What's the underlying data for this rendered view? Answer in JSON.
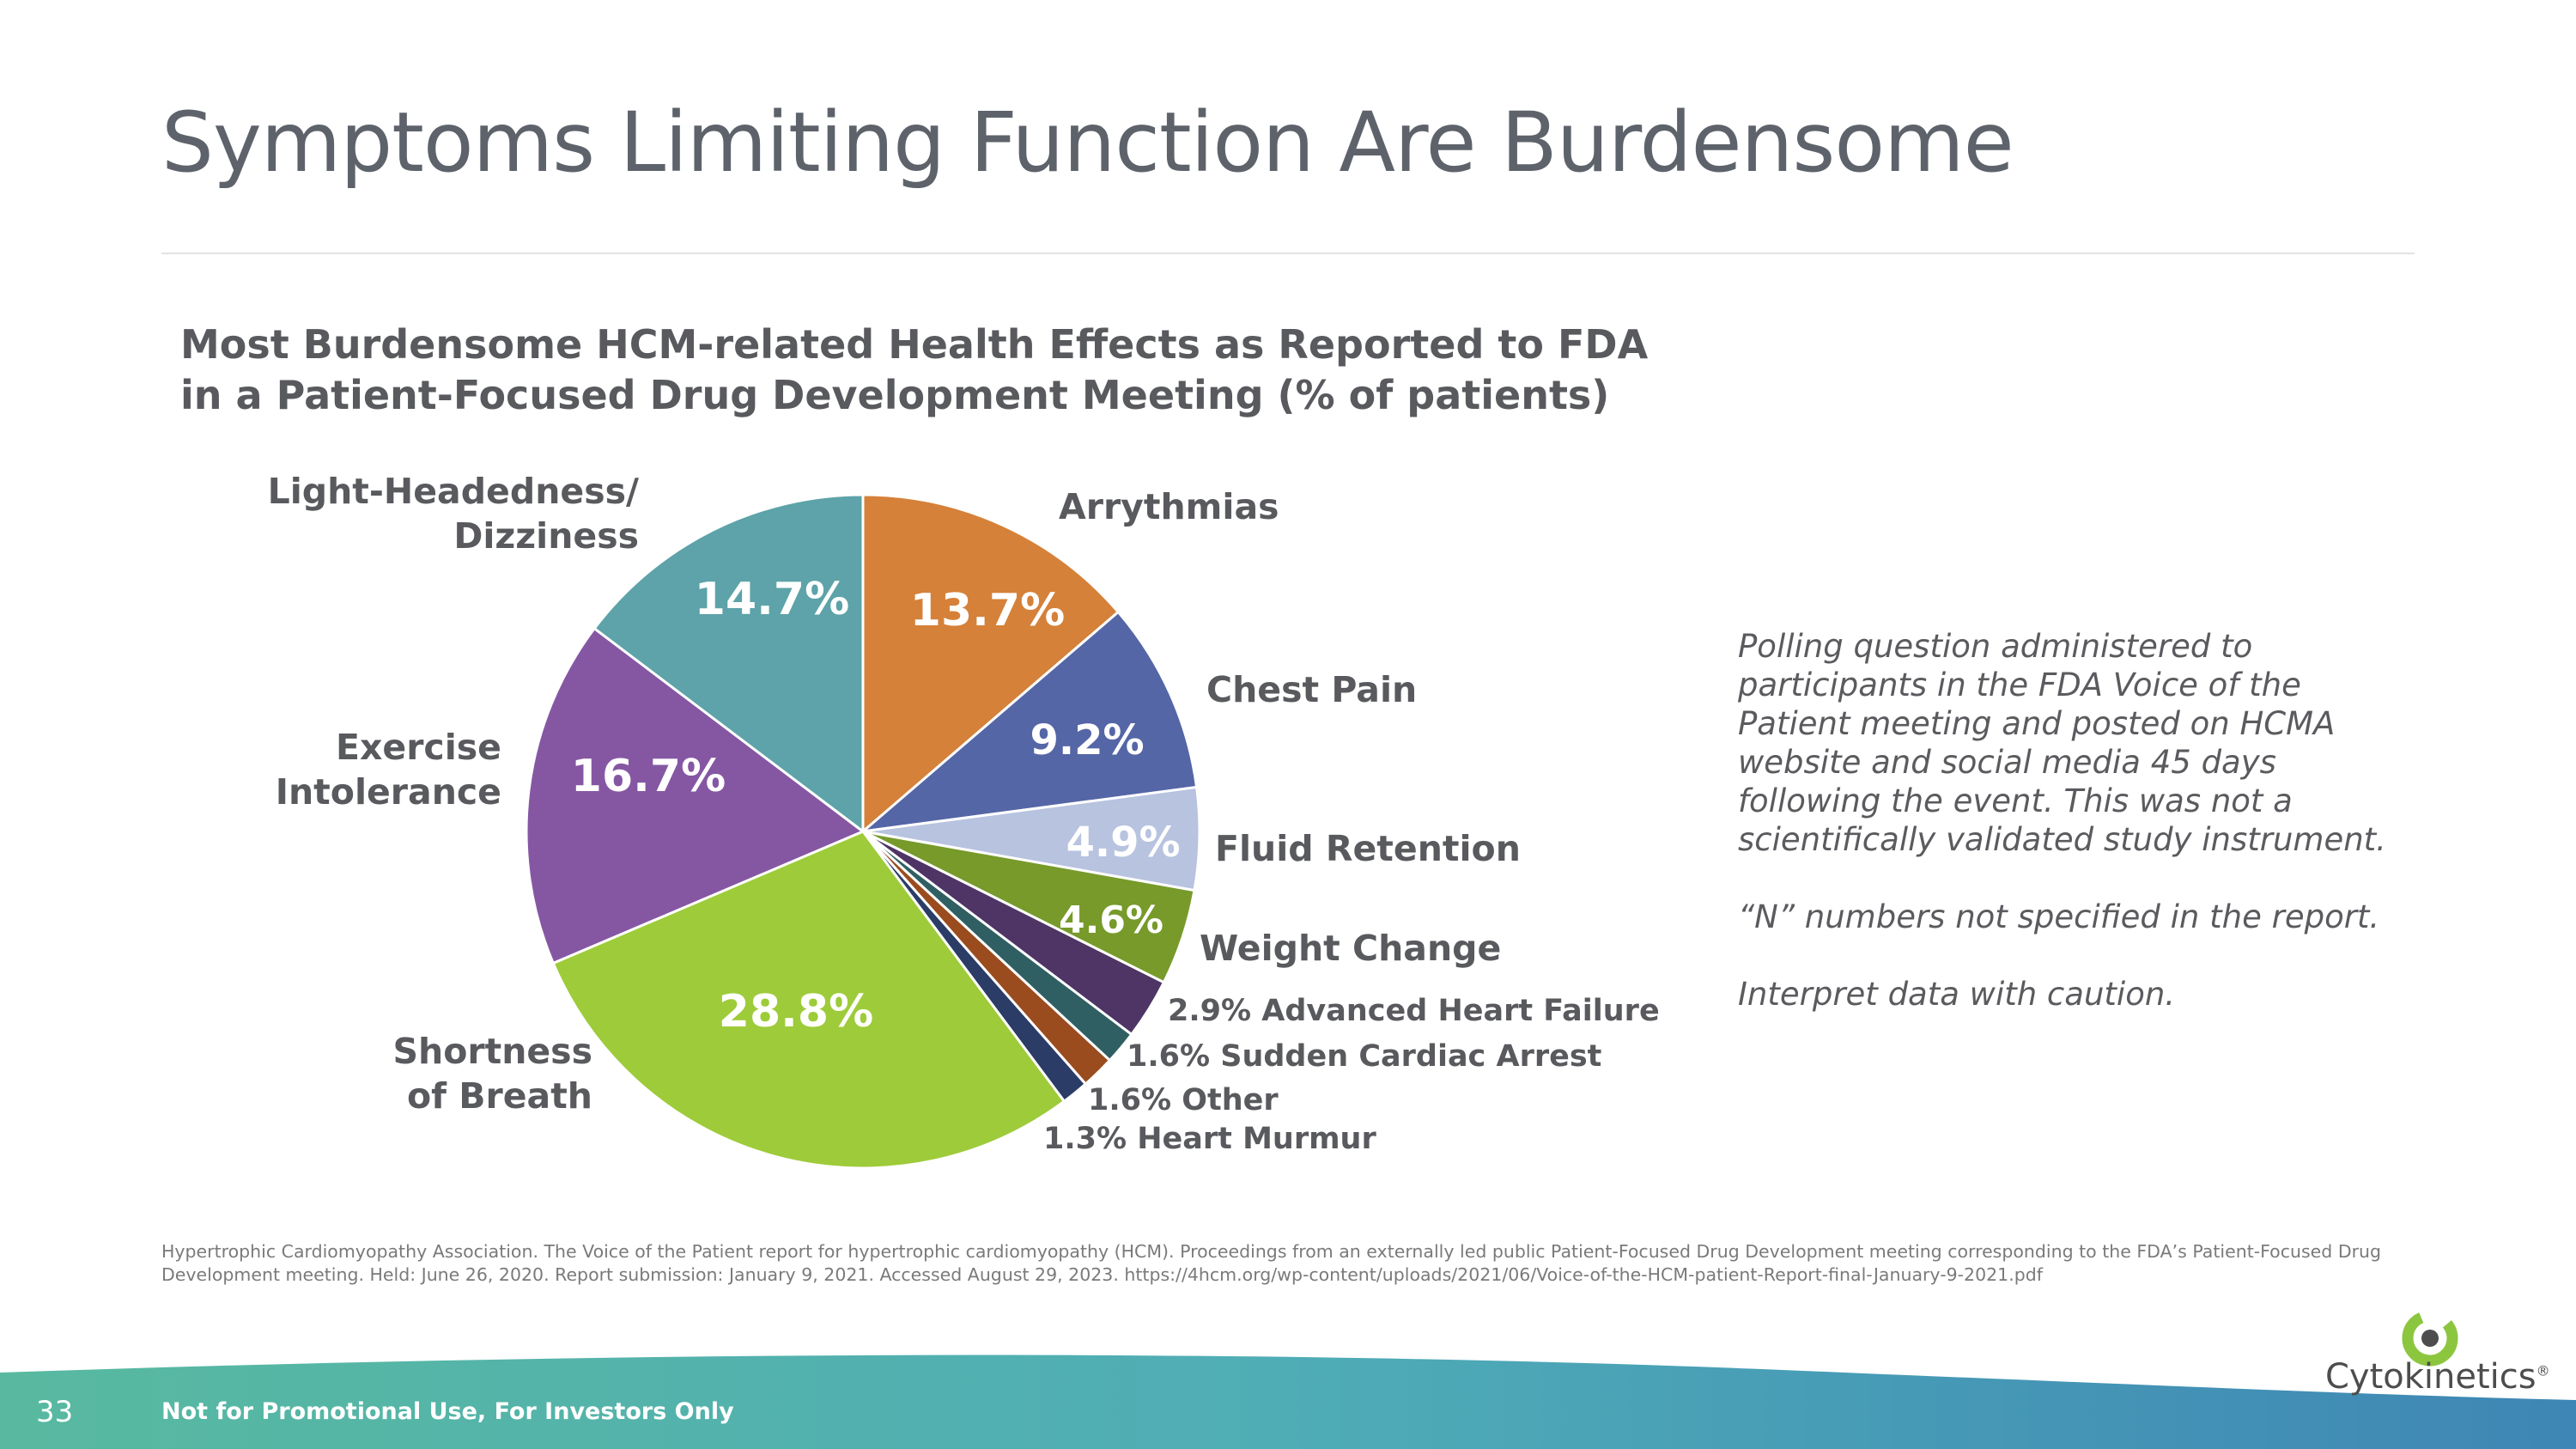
{
  "page": {
    "title": "Symptoms Limiting Function Are Burdensome",
    "page_number": "33",
    "footer_text": "Not for Promotional Use, For Investors Only",
    "brand": "Cytokinetics",
    "brand_mark": "®"
  },
  "chart_title_lines": [
    "Most Burdensome HCM-related Health Effects as Reported to FDA",
    "in a Patient-Focused Drug Development Meeting (% of patients)"
  ],
  "notes": {
    "p1": "Polling question administered to participants in the FDA Voice of the Patient meeting and posted on HCMA website and social media 45 days following the event. This was not a scientifically validated study instrument.",
    "p2": "“N” numbers not specified in the report.",
    "p3": "Interpret data with caution."
  },
  "citation": "Hypertrophic Cardiomyopathy Association. The Voice of the Patient report for hypertrophic cardiomyopathy (HCM). Proceedings from an externally led public Patient-Focused Drug Development meeting corresponding to the FDA’s Patient-Focused Drug Development meeting. Held: June 26, 2020. Report submission: January 9, 2021. Accessed August 29, 2023. https://4hcm.org/wp-content/uploads/2021/06/Voice-of-the-HCM-patient-Report-final-January-9-2021.pdf",
  "colors": {
    "title": "#5e636b",
    "footer_gradient_start": "#58b9a0",
    "footer_gradient_end": "#3e86b5",
    "logo_green": "#8cc63f"
  },
  "chart_data": {
    "type": "pie",
    "title": "Most Burdensome HCM-related Health Effects as Reported to FDA in a Patient-Focused Drug Development Meeting (% of patients)",
    "unit": "%",
    "start": "12 o'clock, clockwise",
    "slices": [
      {
        "label": "Arrythmias",
        "value": 13.7,
        "value_label": "13.7%",
        "color": "#d58139",
        "label_style": "separate"
      },
      {
        "label": "Chest Pain",
        "value": 9.2,
        "value_label": "9.2%",
        "color": "#5566a6",
        "label_style": "separate"
      },
      {
        "label": "Fluid Retention",
        "value": 4.9,
        "value_label": "4.9%",
        "color": "#b7c3df",
        "label_style": "separate"
      },
      {
        "label": "Weight Change",
        "value": 4.6,
        "value_label": "4.6%",
        "color": "#779a2a",
        "label_style": "separate"
      },
      {
        "label": "Advanced Heart Failure",
        "value": 2.9,
        "value_label": "2.9%",
        "color": "#4e3565",
        "label_style": "combined"
      },
      {
        "label": "Sudden Cardiac Arrest",
        "value": 1.6,
        "value_label": "1.6%",
        "color": "#2f5f63",
        "label_style": "combined"
      },
      {
        "label": "Other",
        "value": 1.6,
        "value_label": "1.6%",
        "color": "#9a4c1f",
        "label_style": "combined"
      },
      {
        "label": "Heart Murmur",
        "value": 1.3,
        "value_label": "1.3%",
        "color": "#2b3c66",
        "label_style": "combined"
      },
      {
        "label": "Shortness of Breath",
        "lines": [
          "Shortness",
          "of Breath"
        ],
        "value": 28.8,
        "value_label": "28.8%",
        "color": "#9ecb3a",
        "label_style": "separate"
      },
      {
        "label": "Exercise Intolerance",
        "lines": [
          "Exercise",
          "Intolerance"
        ],
        "value": 16.7,
        "value_label": "16.7%",
        "color": "#8557a3",
        "label_style": "separate"
      },
      {
        "label": "Light-Headedness/ Dizziness",
        "lines": [
          "Light-Headedness/",
          "Dizziness"
        ],
        "value": 14.7,
        "value_label": "14.7%",
        "color": "#5da3a9",
        "label_style": "separate"
      }
    ]
  }
}
